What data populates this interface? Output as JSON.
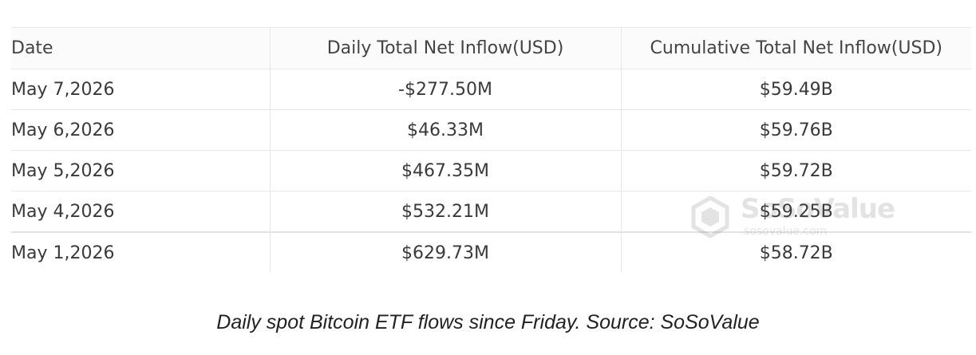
{
  "table": {
    "headers": {
      "date": "Date",
      "daily": "Daily Total Net Inflow(USD)",
      "cumulative": "Cumulative Total Net Inflow(USD)"
    },
    "rows": [
      {
        "date": "May 7,2026",
        "daily": "-$277.50M",
        "daily_status": "negative",
        "cumulative": "$59.49B"
      },
      {
        "date": "May 6,2026",
        "daily": "$46.33M",
        "daily_status": "positive",
        "cumulative": "$59.76B"
      },
      {
        "date": "May 5,2026",
        "daily": "$467.35M",
        "daily_status": "positive",
        "cumulative": "$59.72B"
      },
      {
        "date": "May 4,2026",
        "daily": "$532.21M",
        "daily_status": "positive",
        "cumulative": "$59.25B"
      },
      {
        "date": "May 1,2026",
        "daily": "$629.73M",
        "daily_status": "positive",
        "cumulative": "$58.72B"
      }
    ]
  },
  "colors": {
    "negative": "#e0483a",
    "positive": "#2fa55e",
    "text": "#3a3a3a",
    "border": "#e7e7e7"
  },
  "watermark": {
    "name": "SoSoValue",
    "url": "sosovalue.com",
    "icon": "sosovalue-logo-icon"
  },
  "caption": "Daily spot Bitcoin ETF flows since Friday. Source: SoSoValue"
}
